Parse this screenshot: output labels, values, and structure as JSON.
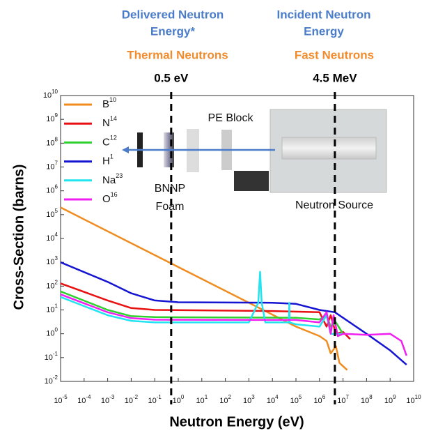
{
  "chart_data": {
    "type": "line",
    "headers": [
      {
        "title": [
          "Delivered Neutron",
          "Energy*"
        ],
        "subtitle": "Thermal Neutrons"
      },
      {
        "title": [
          "Incident Neutron",
          "Energy"
        ],
        "subtitle": "Fast Neutrons"
      }
    ],
    "markers": [
      {
        "x": 0.5,
        "label": "0.5 eV"
      },
      {
        "x": 4500000,
        "label": "4.5 MeV"
      }
    ],
    "x_label": "Neutron Energy (eV)",
    "y_label": "Cross-Section (barns)",
    "xlog": true,
    "ylog": true,
    "xlim": [
      1e-05,
      10000000000.0
    ],
    "ylim": [
      0.01,
      10000000000.0
    ],
    "xticks": [
      {
        "value": 1e-05,
        "label": "10",
        "exponent": "-5"
      },
      {
        "value": 0.0001,
        "label": "10",
        "exponent": "-4"
      },
      {
        "value": 0.001,
        "label": "10",
        "exponent": "-3"
      },
      {
        "value": 0.01,
        "label": "10",
        "exponent": "-2"
      },
      {
        "value": 0.1,
        "label": "10",
        "exponent": "-1"
      },
      {
        "value": 1,
        "label": "10",
        "exponent": "0"
      },
      {
        "value": 10,
        "label": "10",
        "exponent": "1"
      },
      {
        "value": 100,
        "label": "10",
        "exponent": "2"
      },
      {
        "value": 1000,
        "label": "10",
        "exponent": "3"
      },
      {
        "value": 10000,
        "label": "10",
        "exponent": "4"
      },
      {
        "value": 100000,
        "label": "10",
        "exponent": "5"
      },
      {
        "value": 1000000,
        "label": "10",
        "exponent": "6"
      },
      {
        "value": 10000000,
        "label": "10",
        "exponent": "7"
      },
      {
        "value": 100000000,
        "label": "10",
        "exponent": "8"
      },
      {
        "value": 1000000000,
        "label": "10",
        "exponent": "9"
      },
      {
        "value": 10000000000,
        "label": "10",
        "exponent": "10"
      }
    ],
    "yticks": [
      {
        "value": 0.01,
        "label": "10",
        "exponent": "-2"
      },
      {
        "value": 0.1,
        "label": "10",
        "exponent": "-1"
      },
      {
        "value": 1,
        "label": "10",
        "exponent": "0"
      },
      {
        "value": 10,
        "label": "10",
        "exponent": "1"
      },
      {
        "value": 100,
        "label": "10",
        "exponent": "2"
      },
      {
        "value": 1000,
        "label": "10",
        "exponent": "3"
      },
      {
        "value": 10000,
        "label": "10",
        "exponent": "4"
      },
      {
        "value": 100000,
        "label": "10",
        "exponent": "5"
      },
      {
        "value": 1000000,
        "label": "10",
        "exponent": "6"
      },
      {
        "value": 10000000,
        "label": "10",
        "exponent": "7"
      },
      {
        "value": 100000000,
        "label": "10",
        "exponent": "8"
      },
      {
        "value": 1000000000,
        "label": "10",
        "exponent": "9"
      },
      {
        "value": 10000000000,
        "label": "10",
        "exponent": "10"
      }
    ],
    "series": [
      {
        "name": "B",
        "superscript": "10",
        "color": "#f08c1e",
        "x": [
          1e-05,
          100000,
          1000000,
          2000000,
          3000000,
          5000000,
          7000000,
          15000000
        ],
        "values": [
          200000,
          2,
          0.8,
          0.5,
          0.15,
          0.3,
          0.06,
          0.03
        ]
      },
      {
        "name": "N",
        "superscript": "14",
        "color": "#e81010",
        "x": [
          1e-05,
          0.001,
          0.01,
          0.1,
          10000,
          1000000,
          2000000,
          3000000,
          5000000,
          10000000,
          20000000
        ],
        "values": [
          130,
          25,
          12,
          10,
          9,
          8,
          2,
          6,
          1,
          1.2,
          0.6
        ]
      },
      {
        "name": "C",
        "superscript": "12",
        "color": "#2ed12e",
        "x": [
          1e-05,
          0.001,
          0.01,
          0.1,
          100000,
          1000000,
          2000000,
          3000000,
          5000000,
          10000000
        ],
        "values": [
          60,
          10,
          5.5,
          5,
          4.7,
          4,
          6,
          2,
          3,
          1
        ]
      },
      {
        "name": "H",
        "superscript": "1",
        "color": "#1414d2",
        "x": [
          1e-05,
          0.001,
          0.01,
          0.1,
          1,
          10000,
          100000,
          1000000,
          4500000,
          100000000,
          1000000000,
          5000000000
        ],
        "values": [
          1000,
          150,
          50,
          25,
          21,
          20,
          18,
          10,
          8,
          1,
          0.2,
          0.05
        ]
      },
      {
        "name": "Na",
        "superscript": "23",
        "color": "#22e4f0",
        "x": [
          1e-05,
          0.001,
          0.01,
          0.1,
          1000,
          2500,
          3000,
          3500,
          5000,
          50000,
          52000,
          54000,
          100000,
          1000000,
          2000000,
          3000000,
          10000000
        ],
        "values": [
          35,
          6,
          3.5,
          3,
          3,
          20,
          400,
          20,
          3,
          3,
          20,
          3,
          2.5,
          2,
          6,
          1,
          1
        ]
      },
      {
        "name": "O",
        "superscript": "16",
        "color": "#f01ef0",
        "x": [
          1e-05,
          0.001,
          0.01,
          0.1,
          100000,
          1000000,
          2000000,
          3000000,
          4000000,
          6000000,
          10000000,
          100000000,
          1000000000,
          3000000000,
          5000000000
        ],
        "values": [
          45,
          8,
          4.5,
          3.9,
          3.8,
          3,
          8,
          1,
          6,
          0.8,
          1,
          0.9,
          1,
          0.5,
          0.12
        ]
      }
    ],
    "legend": "upper left",
    "inset": {
      "pe_label": "PE Block",
      "foam_label": [
        "BNNP",
        "Foam"
      ],
      "source_label": "Neutron Source"
    }
  }
}
